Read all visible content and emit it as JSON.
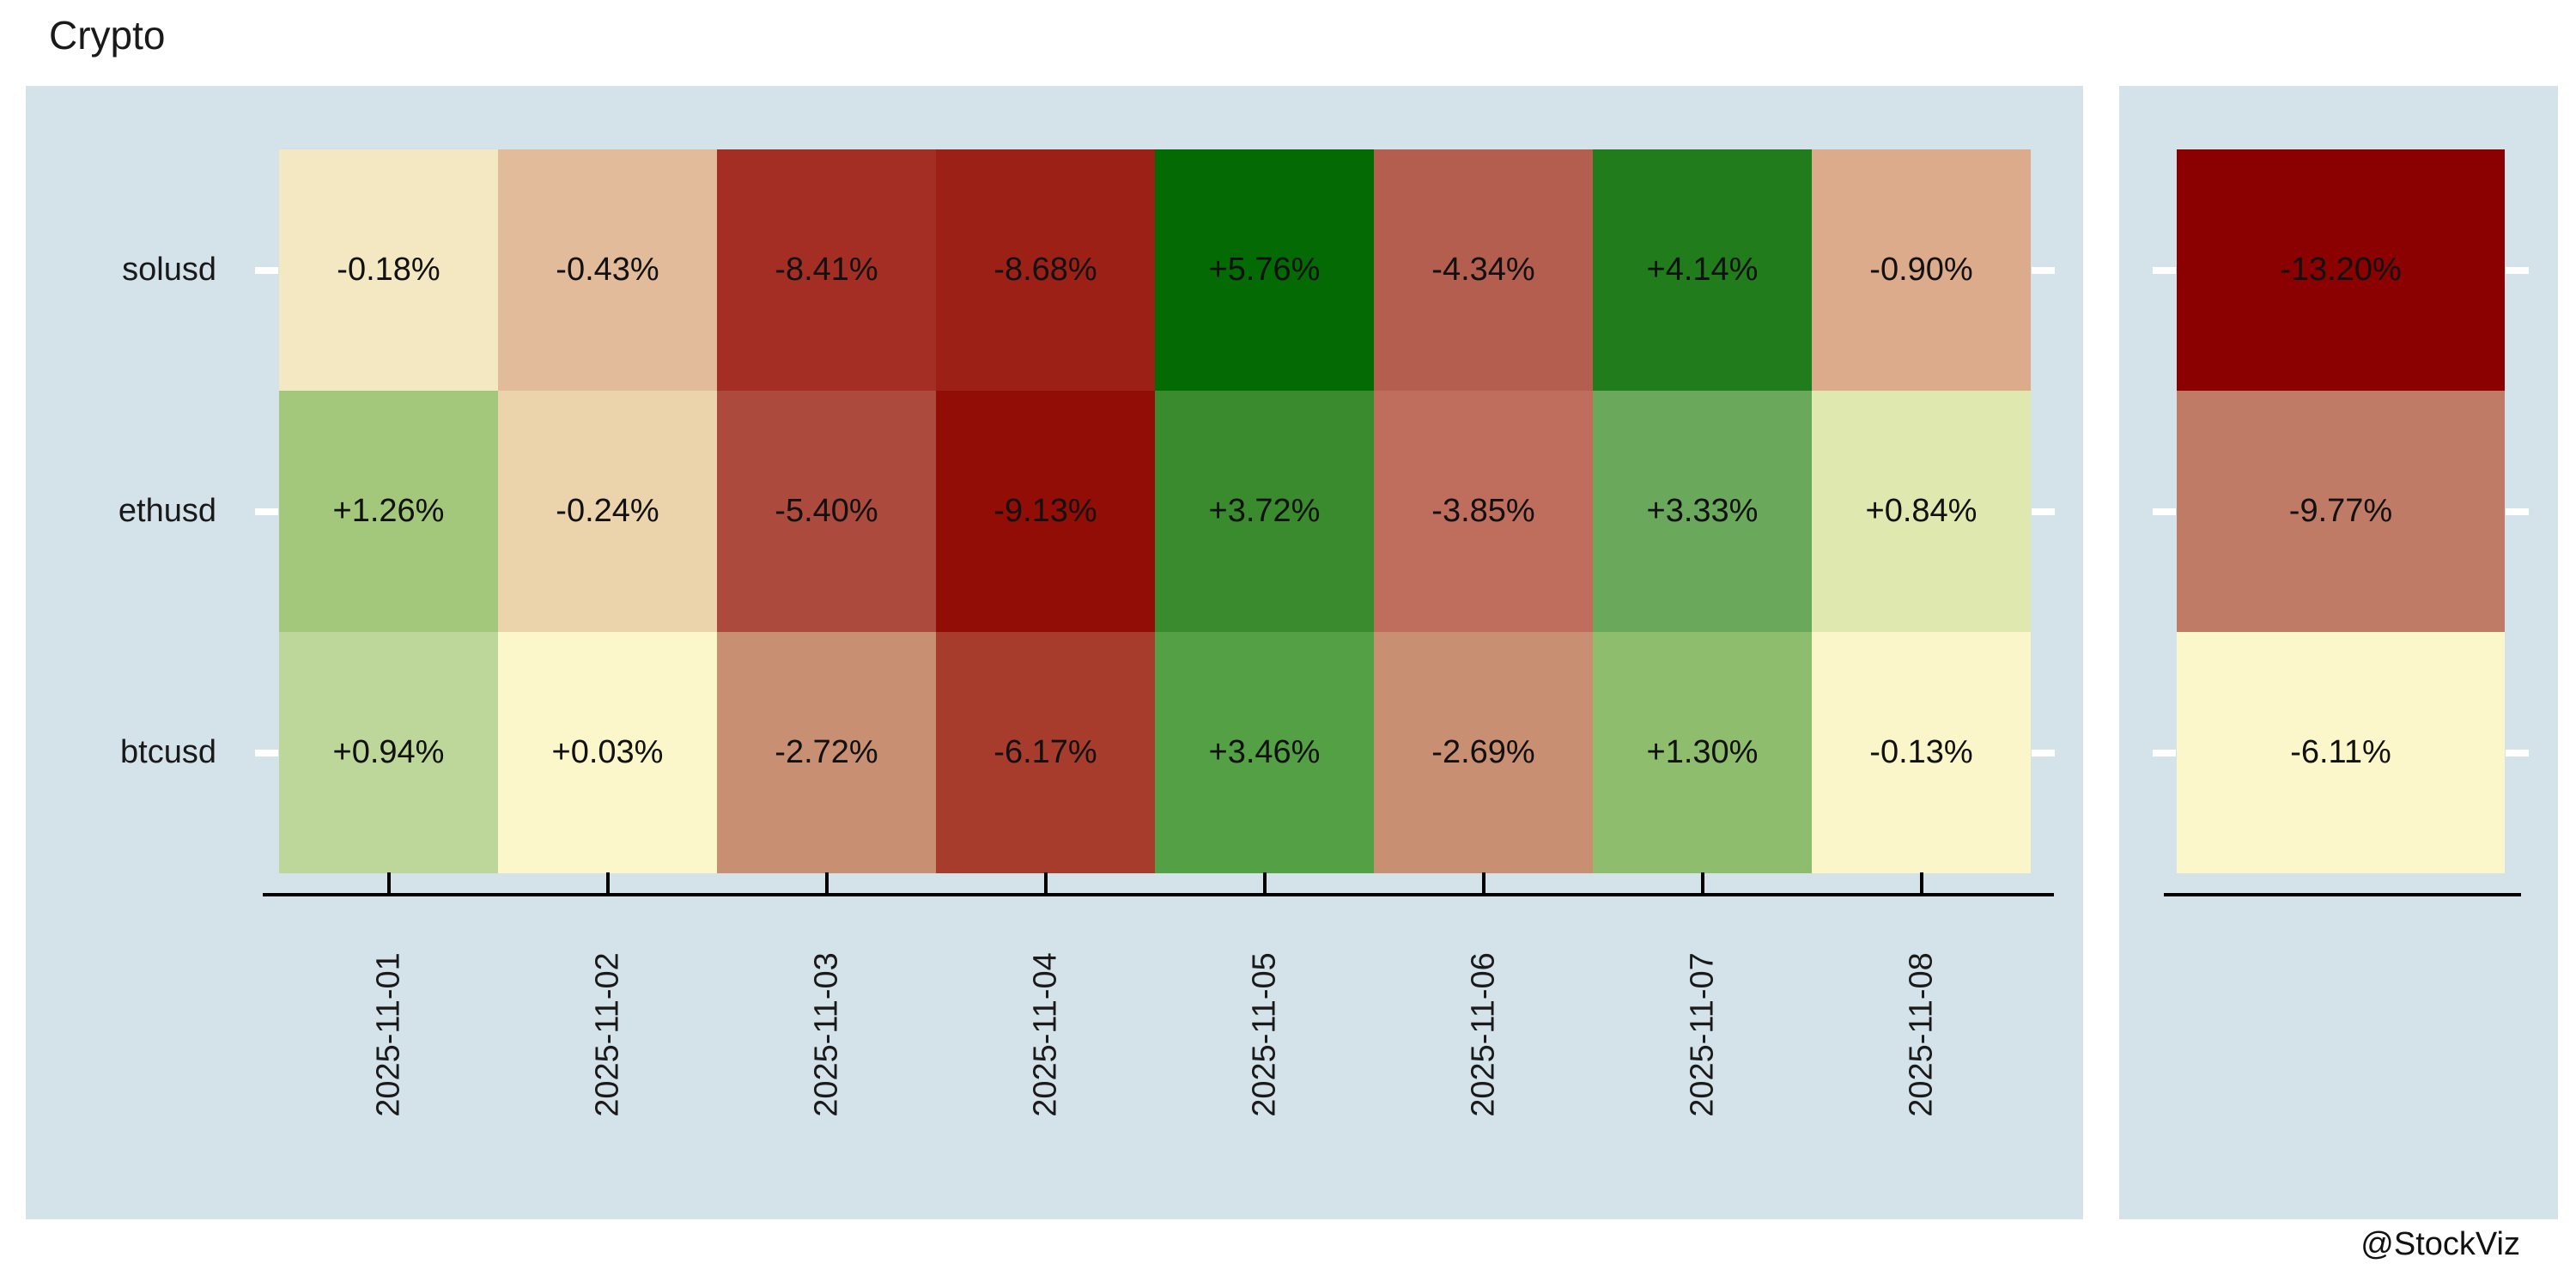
{
  "title": "Crypto",
  "watermark": "@StockViz",
  "theme": {
    "page_bg": "#ffffff",
    "panel_bg": "#d4e2e9",
    "axis_color": "#000000",
    "row_tick_color": "#ffffff",
    "text_color": "#1a1a1a"
  },
  "chart_data": {
    "type": "heatmap",
    "title": "Crypto",
    "colormap": "RdYlGn",
    "legend": "none",
    "columns": [
      "2025-11-01",
      "2025-11-02",
      "2025-11-03",
      "2025-11-04",
      "2025-11-05",
      "2025-11-06",
      "2025-11-07",
      "2025-11-08"
    ],
    "rows": [
      "solusd",
      "ethusd",
      "btcusd"
    ],
    "values": [
      [
        -0.18,
        -0.43,
        -8.41,
        -8.68,
        5.76,
        -4.34,
        4.14,
        -0.9
      ],
      [
        1.26,
        -0.24,
        -5.4,
        -9.13,
        3.72,
        -3.85,
        3.33,
        0.84
      ],
      [
        0.94,
        0.03,
        -2.72,
        -6.17,
        3.46,
        -2.69,
        1.3,
        -0.13
      ]
    ],
    "cell_labels": [
      [
        "-0.18%",
        "-0.43%",
        "-8.41%",
        "-8.68%",
        "+5.76%",
        "-4.34%",
        "+4.14%",
        "-0.90%"
      ],
      [
        "+1.26%",
        "-0.24%",
        "-5.40%",
        "-9.13%",
        "+3.72%",
        "-3.85%",
        "+3.33%",
        "+0.84%"
      ],
      [
        "+0.94%",
        "+0.03%",
        "-2.72%",
        "-6.17%",
        "+3.46%",
        "-2.69%",
        "+1.30%",
        "-0.13%"
      ]
    ],
    "cell_colors": [
      [
        "#f4e8c3",
        "#e2bc9a",
        "#a52e24",
        "#9d2016",
        "#046a04",
        "#b35e4f",
        "#217c1b",
        "#dcab8c"
      ],
      [
        "#a3c87b",
        "#ebd3ac",
        "#ab4a3d",
        "#910d05",
        "#398b2d",
        "#bf6e5d",
        "#6aa85b",
        "#dfe8af"
      ],
      [
        "#bdd699",
        "#fbf7cb",
        "#c98f72",
        "#a73b2c",
        "#54a145",
        "#c98f72",
        "#8ebd6d",
        "#fbf6c9"
      ]
    ],
    "totals": {
      "values": [
        -13.2,
        -9.77,
        -6.11
      ],
      "labels": [
        "-13.20%",
        "-9.77%",
        "-6.11%"
      ],
      "colors": [
        "#8b0000",
        "#c07b67",
        "#fbf7ca"
      ]
    },
    "x_axis": {
      "tick_labels_rotated": true
    }
  }
}
